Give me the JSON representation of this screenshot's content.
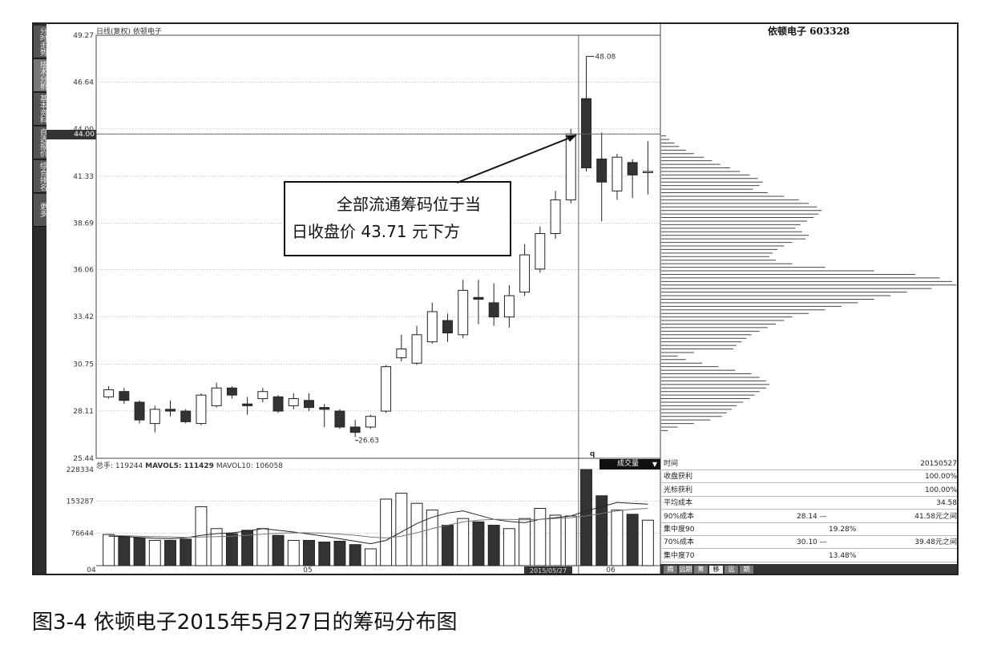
{
  "sidebar": {
    "tabs": [
      {
        "label": "分时走势",
        "active": false
      },
      {
        "label": "技术分析",
        "active": true
      },
      {
        "label": "基本资料",
        "active": false
      },
      {
        "label": "自选报价",
        "active": false
      },
      {
        "label": "综合排名",
        "active": false
      },
      {
        "label": "更多",
        "active": false
      }
    ]
  },
  "chart_title": "日线(复权) 依顿电子",
  "stock_name": "依顿电子 603328",
  "current_price_marker": "44.00",
  "volume_legend": {
    "total_label": "总手: 119244",
    "mavol5_label": "MAVOL5:",
    "mavol5_value": "111429",
    "mavol10_label": "MAVOL10: 106058"
  },
  "volume_button": {
    "label": "成交量",
    "caret": "▼"
  },
  "info_panel": {
    "rows": [
      {
        "label": "时间",
        "value": "20150527"
      },
      {
        "label": "收盘获利",
        "value": "100.00%"
      },
      {
        "label": "光标获利",
        "value": "100.00%"
      },
      {
        "label": "平均成本",
        "value": "34.58"
      },
      {
        "label": "90%成本",
        "mid": "28.14 —",
        "value": "41.58元之间"
      },
      {
        "label": "集中度90",
        "mid": "19.28%",
        "value": ""
      },
      {
        "label": "70%成本",
        "mid": "30.10 —",
        "value": "39.48元之间"
      },
      {
        "label": "集中度70",
        "mid": "13.48%",
        "value": ""
      }
    ],
    "tabs": [
      "腾",
      "远期",
      "筹",
      "移",
      "远",
      "期"
    ]
  },
  "cursor_date": "2015/05/27",
  "callout": {
    "line1": "全部流通筹码位于当",
    "line2": "日收盘价 43.71 元下方"
  },
  "caption": "图3-4 依顿电子2015年5月27日的筹码分布图",
  "colors": {
    "bull": "#ffffff",
    "bear": "#333333",
    "grid": "#aaaaaa",
    "frame": "#222222"
  },
  "chart_data": [
    {
      "type": "candlestick",
      "title": "日线(复权) 依顿电子",
      "ylim": [
        25.44,
        49.27
      ],
      "y_ticks": [
        "49.27",
        "46.64",
        "44.00",
        "41.33",
        "38.69",
        "36.06",
        "33.42",
        "30.75",
        "28.11",
        "25.44"
      ],
      "x_ticks": [
        "04",
        "05",
        "06"
      ],
      "annotations": [
        {
          "text": "48.08",
          "value": 48.08
        },
        {
          "text": "26.63",
          "value": 26.63
        },
        {
          "text": "q",
          "value": null
        }
      ],
      "candles": [
        {
          "o": 28.9,
          "c": 29.3,
          "h": 29.5,
          "l": 28.8
        },
        {
          "o": 29.2,
          "c": 28.7,
          "h": 29.4,
          "l": 28.5
        },
        {
          "o": 28.6,
          "c": 27.6,
          "h": 28.7,
          "l": 27.4
        },
        {
          "o": 27.4,
          "c": 28.2,
          "h": 28.4,
          "l": 26.9
        },
        {
          "o": 28.2,
          "c": 28.1,
          "h": 28.7,
          "l": 27.8
        },
        {
          "o": 28.1,
          "c": 27.5,
          "h": 28.2,
          "l": 27.4
        },
        {
          "o": 27.4,
          "c": 29.0,
          "h": 29.1,
          "l": 27.3
        },
        {
          "o": 28.4,
          "c": 29.4,
          "h": 29.7,
          "l": 28.3
        },
        {
          "o": 29.4,
          "c": 29.0,
          "h": 29.5,
          "l": 28.8
        },
        {
          "o": 28.5,
          "c": 28.4,
          "h": 28.9,
          "l": 27.9
        },
        {
          "o": 28.8,
          "c": 29.2,
          "h": 29.4,
          "l": 28.6
        },
        {
          "o": 28.9,
          "c": 28.1,
          "h": 29.0,
          "l": 28.0
        },
        {
          "o": 28.4,
          "c": 28.8,
          "h": 29.1,
          "l": 28.2
        },
        {
          "o": 28.7,
          "c": 28.3,
          "h": 29.1,
          "l": 28.1
        },
        {
          "o": 28.3,
          "c": 28.2,
          "h": 28.5,
          "l": 27.2
        },
        {
          "o": 28.1,
          "c": 27.2,
          "h": 28.2,
          "l": 27.1
        },
        {
          "o": 27.2,
          "c": 26.9,
          "h": 27.6,
          "l": 26.63
        },
        {
          "o": 27.2,
          "c": 27.8,
          "h": 27.9,
          "l": 27.1
        },
        {
          "o": 28.1,
          "c": 30.6,
          "h": 30.7,
          "l": 28.0
        },
        {
          "o": 31.1,
          "c": 31.6,
          "h": 32.4,
          "l": 30.9
        },
        {
          "o": 30.8,
          "c": 32.4,
          "h": 32.9,
          "l": 30.7
        },
        {
          "o": 32.0,
          "c": 33.7,
          "h": 34.2,
          "l": 31.9
        },
        {
          "o": 33.2,
          "c": 32.5,
          "h": 33.6,
          "l": 32.0
        },
        {
          "o": 32.4,
          "c": 34.9,
          "h": 35.5,
          "l": 32.2
        },
        {
          "o": 34.5,
          "c": 34.4,
          "h": 35.5,
          "l": 33.0
        },
        {
          "o": 34.2,
          "c": 33.4,
          "h": 35.3,
          "l": 32.9
        },
        {
          "o": 33.4,
          "c": 34.6,
          "h": 35.2,
          "l": 32.8
        },
        {
          "o": 34.8,
          "c": 36.9,
          "h": 37.5,
          "l": 34.6
        },
        {
          "o": 36.1,
          "c": 38.1,
          "h": 38.5,
          "l": 35.9
        },
        {
          "o": 38.1,
          "c": 40.0,
          "h": 40.5,
          "l": 37.8
        },
        {
          "o": 40.0,
          "c": 43.71,
          "h": 44.0,
          "l": 39.8
        },
        {
          "o": 45.7,
          "c": 41.8,
          "h": 48.08,
          "l": 41.6
        },
        {
          "o": 42.3,
          "c": 41.0,
          "h": 43.8,
          "l": 38.8
        },
        {
          "o": 40.5,
          "c": 42.4,
          "h": 42.6,
          "l": 40.0
        },
        {
          "o": 42.1,
          "c": 41.4,
          "h": 42.3,
          "l": 40.1
        },
        {
          "o": 41.6,
          "c": 41.6,
          "h": 43.3,
          "l": 40.3
        }
      ]
    },
    {
      "type": "bar",
      "title": "成交量",
      "ylim": [
        0,
        228334
      ],
      "y_ticks": [
        "228334",
        "153287",
        "76644"
      ],
      "values": [
        74000,
        70000,
        66000,
        60000,
        60000,
        63000,
        140000,
        88000,
        76000,
        84000,
        88000,
        72000,
        60000,
        60000,
        56000,
        58000,
        50000,
        40000,
        158000,
        172000,
        148000,
        132000,
        96000,
        112000,
        104000,
        96000,
        88000,
        112000,
        136000,
        120000,
        118000,
        228334,
        166000,
        132000,
        122000,
        108000
      ],
      "ma5": [
        70000,
        69000,
        67000,
        65000,
        64000,
        66000,
        72000,
        76000,
        78000,
        82000,
        88000,
        84000,
        80000,
        75000,
        70000,
        64000,
        58000,
        52000,
        60000,
        80000,
        100000,
        115000,
        125000,
        130000,
        120000,
        110000,
        105000,
        102000,
        110000,
        114000,
        118000,
        130000,
        140000,
        150000,
        148000,
        146000
      ],
      "ma10": [
        72000,
        71000,
        70000,
        69000,
        68000,
        67000,
        68000,
        69000,
        70000,
        72000,
        75000,
        77000,
        78000,
        78000,
        77000,
        75000,
        72000,
        68000,
        66000,
        70000,
        78000,
        88000,
        96000,
        104000,
        108000,
        110000,
        110000,
        109000,
        110000,
        112000,
        114000,
        118000,
        124000,
        130000,
        134000,
        136000
      ]
    },
    {
      "type": "bar",
      "title": "筹码分布",
      "ylim": [
        25.44,
        49.27
      ],
      "orientation": "horizontal",
      "bins_price": [
        43.6,
        43.4,
        43.2,
        43.0,
        42.8,
        42.6,
        42.4,
        42.2,
        42.0,
        41.8,
        41.6,
        41.4,
        41.2,
        41.0,
        40.8,
        40.6,
        40.4,
        40.2,
        40.0,
        39.8,
        39.6,
        39.4,
        39.2,
        39.0,
        38.8,
        38.6,
        38.4,
        38.2,
        38.0,
        37.8,
        37.6,
        37.4,
        37.2,
        37.0,
        36.8,
        36.6,
        36.4,
        36.2,
        36.0,
        35.8,
        35.6,
        35.4,
        35.2,
        35.0,
        34.8,
        34.6,
        34.4,
        34.2,
        34.0,
        33.8,
        33.6,
        33.4,
        33.2,
        33.0,
        32.8,
        32.6,
        32.4,
        32.2,
        32.0,
        31.8,
        31.6,
        31.4,
        31.2,
        31.0,
        30.8,
        30.6,
        30.4,
        30.2,
        30.0,
        29.8,
        29.6,
        29.4,
        29.2,
        29.0,
        28.8,
        28.6,
        28.4,
        28.2,
        28.0,
        27.8,
        27.6,
        27.4,
        27.2,
        27.0
      ],
      "values": [
        6,
        10,
        16,
        22,
        30,
        40,
        52,
        62,
        72,
        84,
        96,
        108,
        118,
        124,
        120,
        112,
        130,
        150,
        168,
        180,
        190,
        196,
        192,
        186,
        178,
        170,
        164,
        172,
        180,
        176,
        160,
        150,
        142,
        136,
        132,
        140,
        160,
        200,
        260,
        310,
        340,
        355,
        360,
        330,
        300,
        280,
        260,
        240,
        220,
        200,
        180,
        160,
        150,
        140,
        130,
        120,
        110,
        104,
        98,
        92,
        88,
        40,
        20,
        30,
        50,
        70,
        90,
        110,
        120,
        128,
        132,
        128,
        120,
        114,
        108,
        100,
        92,
        86,
        80,
        74,
        60,
        40,
        20,
        8
      ]
    }
  ]
}
